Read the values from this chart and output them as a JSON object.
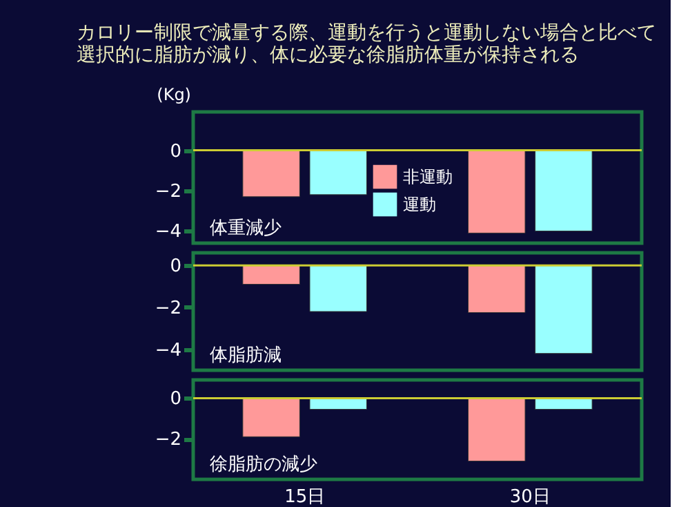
{
  "chart_data": [
    {
      "type": "bar",
      "title": "カロリー制限で減量する際、運動を行うと運動しない場合と比べて",
      "subtitle": "選択的に脂肪が減り、体に必要な徐脂肪体重が保持される",
      "ylabel": "(Kg)",
      "annotations": [
        "体重減少"
      ],
      "categories": [
        "15日",
        "30日"
      ],
      "series": [
        {
          "name": "非運動",
          "color": "#ff9999",
          "values": [
            -2.3,
            -4.1
          ]
        },
        {
          "name": "運動",
          "color": "#99ffff",
          "values": [
            -2.2,
            -4.0
          ]
        }
      ],
      "ylim": [
        -4.6,
        1.9
      ],
      "yticks": [
        0,
        -2,
        -4
      ],
      "grid": false,
      "legend": "bottom",
      "tick_labels": "y",
      "ref_lines": [
        {
          "axis": "y",
          "value": 0,
          "color": "#cccc33"
        }
      ]
    },
    {
      "type": "bar",
      "annotations": [
        "体脂肪減"
      ],
      "categories": [
        "15日",
        "30日"
      ],
      "series": [
        {
          "color": "#ff9999",
          "values": [
            -0.9,
            -2.25
          ]
        },
        {
          "color": "#99ffff",
          "values": [
            -2.2,
            -4.2
          ]
        }
      ],
      "ylim": [
        -5.0,
        0.6
      ],
      "yticks": [
        0,
        -2,
        -4
      ],
      "grid": false,
      "tick_labels": "y",
      "ref_lines": [
        {
          "axis": "y",
          "value": 0,
          "color": "#cccc33"
        }
      ]
    },
    {
      "type": "bar",
      "annotations": [
        "徐脂肪の減少"
      ],
      "categories": [
        "15日",
        "30日"
      ],
      "series": [
        {
          "color": "#ff9999",
          "values": [
            -1.9,
            -3.1
          ]
        },
        {
          "color": "#99ffff",
          "values": [
            -0.55,
            -0.55
          ]
        }
      ],
      "ylim": [
        -4.0,
        0.9
      ],
      "yticks": [
        0,
        -2
      ],
      "grid": false,
      "ref_lines": [
        {
          "axis": "y",
          "value": 0,
          "color": "#cccc33"
        }
      ]
    }
  ]
}
